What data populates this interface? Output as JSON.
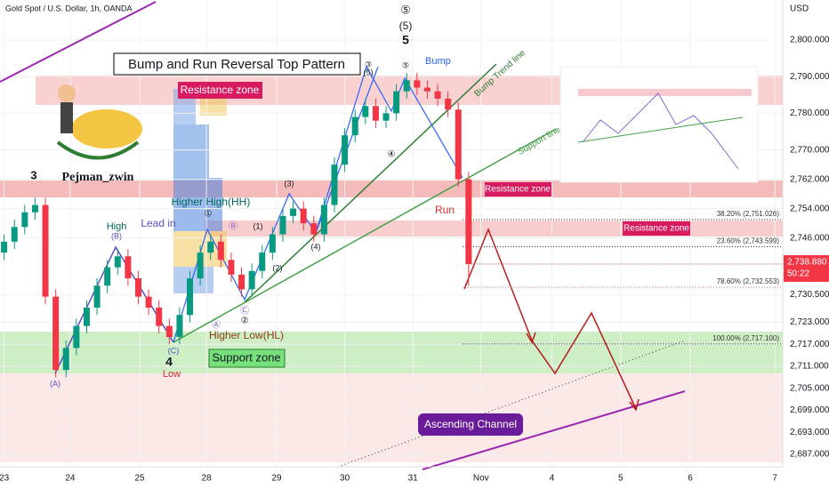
{
  "chart_data": {
    "type": "candlestick",
    "title": "Gold Spot / U.S. Dollar, 1h, OANDA",
    "currency": "USD",
    "up_color": "#089981",
    "down_color": "#f23645",
    "x": [
      0,
      0.15,
      0.3,
      0.45,
      0.6,
      0.75,
      0.9,
      1.05,
      1.2,
      1.35,
      1.5,
      1.65,
      1.8,
      1.95,
      2.1,
      2.25,
      2.4,
      2.55,
      2.7,
      2.85,
      3,
      3.15,
      3.3,
      3.45,
      3.6,
      3.75,
      3.9,
      4.05,
      4.2,
      4.35,
      4.5,
      4.65,
      4.8,
      4.95,
      5.1,
      5.25,
      5.4,
      5.55,
      5.7,
      5.85,
      6,
      6.15,
      6.3,
      6.45,
      6.6,
      6.75
    ],
    "open": [
      2742,
      2745,
      2749,
      2753,
      2755,
      2730,
      2710,
      2716,
      2722,
      2727,
      2733,
      2738,
      2741,
      2735,
      2730,
      2727,
      2722,
      2719,
      2725,
      2735,
      2742,
      2745,
      2740,
      2736,
      2732,
      2737,
      2742,
      2747,
      2752,
      2754,
      2750,
      2747,
      2755,
      2766,
      2774,
      2779,
      2782,
      2778,
      2780,
      2786,
      2789,
      2787,
      2786,
      2784,
      2781,
      2762
    ],
    "high": [
      2747,
      2751,
      2755,
      2757,
      2757,
      2732,
      2718,
      2724,
      2729,
      2735,
      2740,
      2743,
      2743,
      2737,
      2732,
      2729,
      2724,
      2727,
      2737,
      2744,
      2747,
      2747,
      2742,
      2738,
      2739,
      2744,
      2749,
      2754,
      2756,
      2756,
      2752,
      2757,
      2768,
      2776,
      2781,
      2784,
      2784,
      2782,
      2788,
      2791,
      2791,
      2789,
      2788,
      2786,
      2783,
      2764
    ],
    "low": [
      2740,
      2743,
      2747,
      2751,
      2728,
      2708,
      2708,
      2714,
      2720,
      2725,
      2731,
      2736,
      2733,
      2728,
      2725,
      2720,
      2717,
      2717,
      2723,
      2733,
      2740,
      2738,
      2734,
      2730,
      2730,
      2735,
      2740,
      2745,
      2750,
      2748,
      2745,
      2745,
      2753,
      2764,
      2772,
      2777,
      2776,
      2776,
      2778,
      2784,
      2785,
      2784,
      2782,
      2779,
      2760,
      2733
    ],
    "close": [
      2745,
      2749,
      2753,
      2755,
      2730,
      2710,
      2716,
      2722,
      2727,
      2733,
      2738,
      2741,
      2735,
      2730,
      2727,
      2722,
      2719,
      2725,
      2735,
      2742,
      2745,
      2740,
      2736,
      2732,
      2737,
      2742,
      2747,
      2752,
      2754,
      2750,
      2747,
      2755,
      2766,
      2774,
      2779,
      2782,
      2778,
      2780,
      2786,
      2789,
      2787,
      2786,
      2784,
      2781,
      2762,
      2738.88
    ],
    "xlim": [
      -0.06,
      11.25
    ],
    "xticks": [
      {
        "value": 0,
        "label": "23"
      },
      {
        "value": 0.96,
        "label": "24"
      },
      {
        "value": 1.97,
        "label": "25"
      },
      {
        "value": 2.94,
        "label": "28"
      },
      {
        "value": 3.96,
        "label": "29"
      },
      {
        "value": 4.95,
        "label": "30"
      },
      {
        "value": 5.94,
        "label": "31"
      },
      {
        "value": 6.93,
        "label": "Nov"
      },
      {
        "value": 7.96,
        "label": "4"
      },
      {
        "value": 8.96,
        "label": "5"
      },
      {
        "value": 9.97,
        "label": "6"
      },
      {
        "value": 11.2,
        "label": "7"
      }
    ],
    "ylim": [
      2683.6,
      2810.9
    ],
    "yticks": [
      {
        "value": 2800,
        "label": "2,800.000"
      },
      {
        "value": 2790,
        "label": "2,790.000"
      },
      {
        "value": 2780,
        "label": "2,780.000"
      },
      {
        "value": 2770,
        "label": "2,770.000"
      },
      {
        "value": 2762,
        "label": "2,762.000"
      },
      {
        "value": 2754,
        "label": "2,754.000"
      },
      {
        "value": 2746,
        "label": "2,746.000"
      },
      {
        "value": 2730.5,
        "label": "2,730.500"
      },
      {
        "value": 2723,
        "label": "2,723.000"
      },
      {
        "value": 2717,
        "label": "2,717.000"
      },
      {
        "value": 2711,
        "label": "2,711.000"
      },
      {
        "value": 2705,
        "label": "2,705.000"
      },
      {
        "value": 2699,
        "label": "2,699.000"
      },
      {
        "value": 2693,
        "label": "2,693.000"
      },
      {
        "value": 2687,
        "label": "2,687.000"
      }
    ],
    "last_price": {
      "value": 2738.88,
      "label": "2,738.880"
    },
    "countdown": "50:22",
    "fib_levels": [
      {
        "value": 2751.026,
        "label": "38.20% (2,751.026)"
      },
      {
        "value": 2743.599,
        "label": "23.60% (2,743.599)"
      },
      {
        "value": 2732.553,
        "label": "78.60% (2,732.553)"
      },
      {
        "value": 2717.1,
        "label": "100.00% (2,717.100)"
      }
    ],
    "annotations": [
      "Bump and Run Reversal Top Pattern",
      "Resistance zone",
      "Resistance zone",
      "Resistance zone",
      "Support zone",
      "Pejman_zwin",
      "3",
      "High",
      "(B)",
      "Lead in",
      "Higher High(HH)",
      "①",
      "Ⓑ",
      "(1)",
      "(3)",
      "(2)",
      "(4)",
      "④",
      "Ⓒ",
      "②",
      "Ⓐ",
      "Higher Low(HL)",
      "(C)",
      "4",
      "Low",
      "(A)",
      "⑤",
      "(5)",
      "5",
      "③",
      "(5)",
      "⑤",
      "Bump",
      "Bump Trend line",
      "Support line",
      "Run",
      "Ascending Channel"
    ]
  }
}
